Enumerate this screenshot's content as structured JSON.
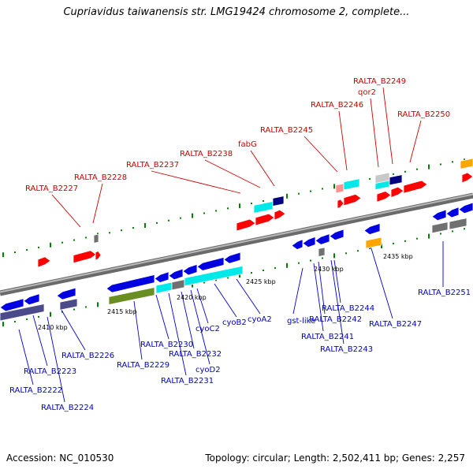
{
  "title": "Cupriavidus taiwanensis str. LMG19424 chromosome 2, complete...",
  "footer": {
    "accession": "Accession: NC_010530",
    "stats": "Topology: circular; Length: 2,502,411 bp; Genes: 2,257"
  },
  "colors": {
    "backbone": "#808080",
    "tick": "#008000",
    "forward_label": "#cc0000",
    "reverse_label": "#0000cc",
    "forward_gene": "#ff0000",
    "reverse_gene": "#0000e0",
    "cyan": "#00e8e8",
    "olive": "#6b8e23",
    "navy": "#000080",
    "slate": "#4b4b8b",
    "gray": "#707070",
    "orange": "#ffa500",
    "pink": "#ff9090"
  },
  "kbp_labels": [
    "2410 kbp",
    "2415 kbp",
    "2420 kbp",
    "2425 kbp",
    "2430 kbp",
    "2435 kbp"
  ],
  "forward_labels": [
    "RALTA_B2227",
    "RALTA_B2228",
    "RALTA_B2237",
    "RALTA_B2238",
    "fabG",
    "RALTA_B2245",
    "RALTA_B2246",
    "qor2",
    "RALTA_B2249",
    "RALTA_B2250"
  ],
  "reverse_labels": [
    "RALTA_B2226",
    "RALTA_B2223",
    "RALTA_B2222",
    "RALTA_B2224",
    "RALTA_B2230",
    "RALTA_B2229",
    "RALTA_B2232",
    "RALTA_B2231",
    "cyoC2",
    "cyoD2",
    "cyoB2",
    "cyoA2",
    "gst-like",
    "RALTA_B2242",
    "RALTA_B2244",
    "RALTA_B2241",
    "RALTA_B2243",
    "RALTA_B2247",
    "RALTA_B2251"
  ]
}
